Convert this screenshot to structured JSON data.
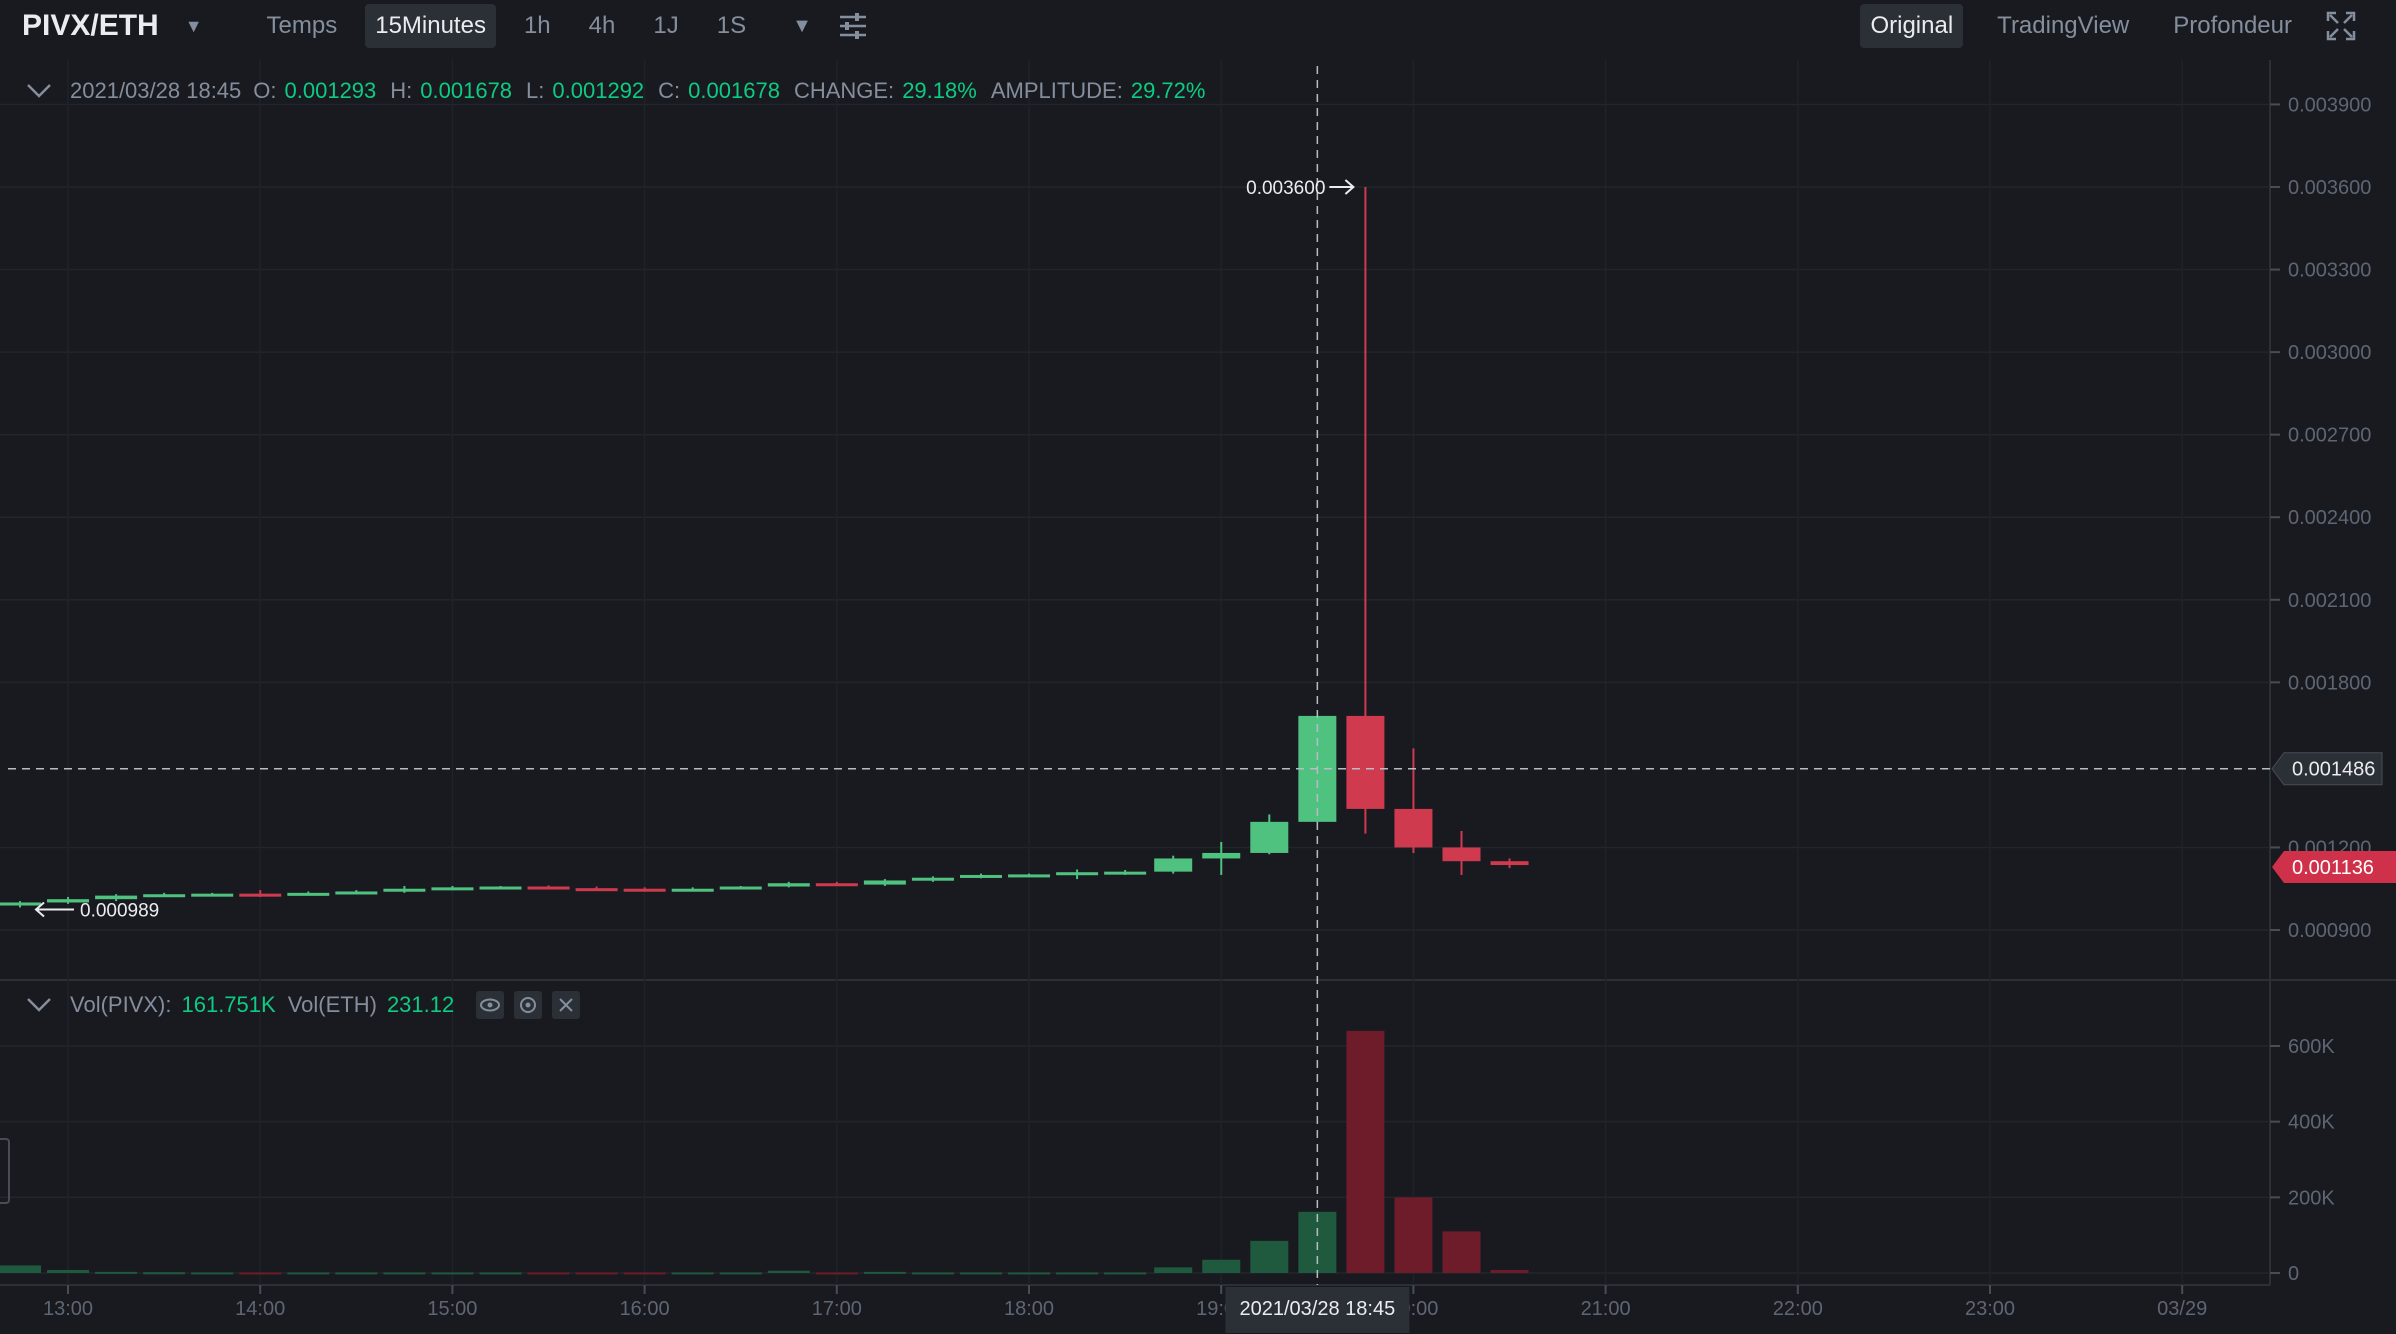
{
  "header": {
    "pair": "PIVX/ETH",
    "timeframes": [
      "Temps",
      "15Minutes",
      "1h",
      "4h",
      "1J",
      "1S"
    ],
    "active_timeframe": "15Minutes",
    "views": [
      "Original",
      "TradingView",
      "Profondeur"
    ],
    "active_view": "Original"
  },
  "info": {
    "date": "2021/03/28 18:45",
    "o_label": "O:",
    "o": "0.001293",
    "h_label": "H:",
    "h": "0.001678",
    "l_label": "L:",
    "l": "0.001292",
    "c_label": "C:",
    "c": "0.001678",
    "change_label": "CHANGE:",
    "change": "29.18%",
    "amplitude_label": "AMPLITUDE:",
    "amplitude": "29.72%"
  },
  "volume": {
    "pivx_label": "Vol(PIVX):",
    "pivx": "161.751K",
    "eth_label": "Vol(ETH)",
    "eth": "231.12"
  },
  "colors": {
    "up": "#0ecb81",
    "down": "#f6465d",
    "up_candle": "#4fc27f",
    "down_candle": "#cf3a4f",
    "up_vol": "#1f5a3e",
    "down_vol": "#6e1b2a"
  },
  "chart_data": {
    "type": "candlestick",
    "price_ticks": [
      "0.003900",
      "0.003600",
      "0.003300",
      "0.003000",
      "0.002700",
      "0.002400",
      "0.002100",
      "0.001800",
      "0.001200",
      "0.000900"
    ],
    "volume_ticks": [
      "600K",
      "400K",
      "200K",
      "0"
    ],
    "time_ticks": [
      "13:00",
      "14:00",
      "15:00",
      "16:00",
      "17:00",
      "18:00",
      "19:00",
      "20:00",
      "21:00",
      "22:00",
      "23:00",
      "03/29"
    ],
    "crosshair_time": "2021/03/28 18:45",
    "crosshair_price": "0.001486",
    "last_price": "0.001136",
    "max_label": "0.003600",
    "min_label": "0.000989",
    "candles": [
      {
        "o": 0.000989,
        "h": 0.001005,
        "l": 0.000982,
        "c": 0.001,
        "v": 20000
      },
      {
        "o": 0.001,
        "h": 0.00102,
        "l": 0.000995,
        "c": 0.001012,
        "v": 8000
      },
      {
        "o": 0.001012,
        "h": 0.00103,
        "l": 0.001005,
        "c": 0.001025,
        "v": 3000
      },
      {
        "o": 0.001025,
        "h": 0.001035,
        "l": 0.00102,
        "c": 0.00103,
        "v": 2000
      },
      {
        "o": 0.00103,
        "h": 0.001035,
        "l": 0.001025,
        "c": 0.001032,
        "v": 1500
      },
      {
        "o": 0.001032,
        "h": 0.001045,
        "l": 0.00102,
        "c": 0.00103,
        "v": 1500
      },
      {
        "o": 0.00103,
        "h": 0.00104,
        "l": 0.001025,
        "c": 0.001035,
        "v": 1500
      },
      {
        "o": 0.001035,
        "h": 0.001045,
        "l": 0.00103,
        "c": 0.00104,
        "v": 1500
      },
      {
        "o": 0.00104,
        "h": 0.00106,
        "l": 0.001035,
        "c": 0.00105,
        "v": 1500
      },
      {
        "o": 0.00105,
        "h": 0.00106,
        "l": 0.001045,
        "c": 0.001055,
        "v": 1500
      },
      {
        "o": 0.001055,
        "h": 0.00106,
        "l": 0.00105,
        "c": 0.001058,
        "v": 1500
      },
      {
        "o": 0.001058,
        "h": 0.001062,
        "l": 0.001048,
        "c": 0.001052,
        "v": 1500
      },
      {
        "o": 0.001052,
        "h": 0.001058,
        "l": 0.001045,
        "c": 0.00105,
        "v": 1500
      },
      {
        "o": 0.00105,
        "h": 0.001055,
        "l": 0.00104,
        "c": 0.001045,
        "v": 1500
      },
      {
        "o": 0.001045,
        "h": 0.001055,
        "l": 0.001042,
        "c": 0.00105,
        "v": 1500
      },
      {
        "o": 0.00105,
        "h": 0.00106,
        "l": 0.001048,
        "c": 0.001058,
        "v": 1500
      },
      {
        "o": 0.001058,
        "h": 0.001075,
        "l": 0.001055,
        "c": 0.00107,
        "v": 6000
      },
      {
        "o": 0.00107,
        "h": 0.001075,
        "l": 0.00106,
        "c": 0.001065,
        "v": 1500
      },
      {
        "o": 0.001065,
        "h": 0.001085,
        "l": 0.00106,
        "c": 0.00108,
        "v": 3000
      },
      {
        "o": 0.00108,
        "h": 0.001095,
        "l": 0.001075,
        "c": 0.00109,
        "v": 1500
      },
      {
        "o": 0.00109,
        "h": 0.001105,
        "l": 0.001088,
        "c": 0.0011,
        "v": 1500
      },
      {
        "o": 0.0011,
        "h": 0.001105,
        "l": 0.001092,
        "c": 0.001102,
        "v": 1500
      },
      {
        "o": 0.001102,
        "h": 0.00112,
        "l": 0.001085,
        "c": 0.00111,
        "v": 1500
      },
      {
        "o": 0.00111,
        "h": 0.001118,
        "l": 0.0011,
        "c": 0.001112,
        "v": 1500
      },
      {
        "o": 0.001112,
        "h": 0.00117,
        "l": 0.001105,
        "c": 0.00116,
        "v": 15000
      },
      {
        "o": 0.00116,
        "h": 0.00122,
        "l": 0.0011,
        "c": 0.00118,
        "v": 35000
      },
      {
        "o": 0.00118,
        "h": 0.00132,
        "l": 0.001175,
        "c": 0.001293,
        "v": 85000
      },
      {
        "o": 0.001293,
        "h": 0.001678,
        "l": 0.001292,
        "c": 0.001678,
        "v": 161751
      },
      {
        "o": 0.001678,
        "h": 0.0036,
        "l": 0.00125,
        "c": 0.00134,
        "v": 640000
      },
      {
        "o": 0.00134,
        "h": 0.00156,
        "l": 0.00118,
        "c": 0.0012,
        "v": 200000
      },
      {
        "o": 0.0012,
        "h": 0.00126,
        "l": 0.0011,
        "c": 0.00115,
        "v": 110000
      },
      {
        "o": 0.00115,
        "h": 0.00116,
        "l": 0.001125,
        "c": 0.001136,
        "v": 8000
      }
    ]
  }
}
